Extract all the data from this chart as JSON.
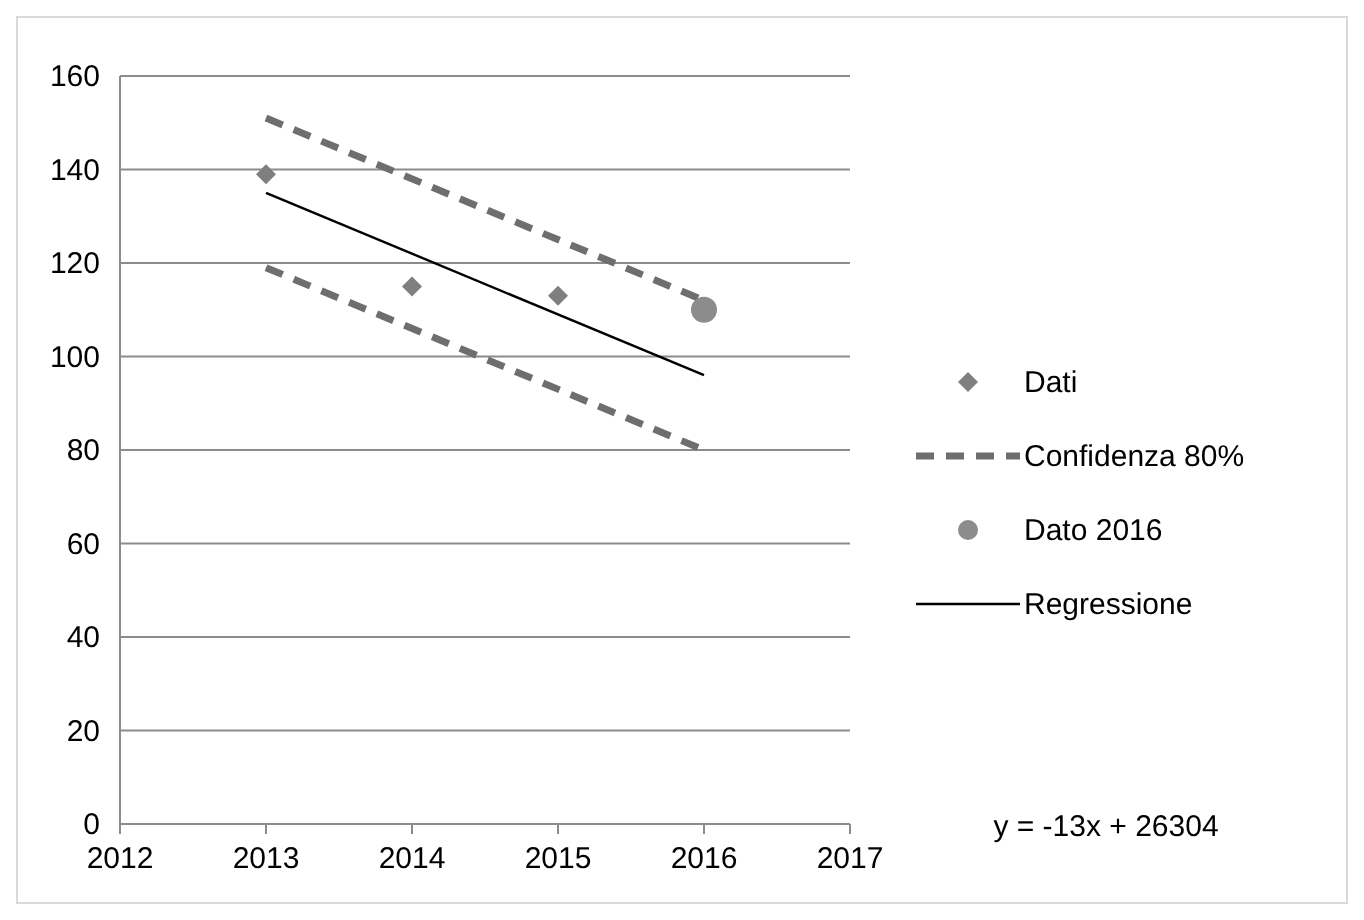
{
  "chart_data": {
    "type": "scatter",
    "xlim": [
      2012,
      2017
    ],
    "xticks": [
      2012,
      2013,
      2014,
      2015,
      2016,
      2017
    ],
    "ylim": [
      0,
      160
    ],
    "yticks": [
      0,
      20,
      40,
      60,
      80,
      100,
      120,
      140,
      160
    ],
    "grid": "y",
    "legend": "right",
    "annotations": [
      "y = -13x + 26304"
    ],
    "series": [
      {
        "name": "Dati",
        "marker": "diamond",
        "color": "#7f7f7f",
        "x": [
          2013,
          2014,
          2015
        ],
        "values": [
          139,
          115,
          113
        ]
      },
      {
        "name": "Confidenza 80%",
        "type": "line",
        "line_style": "dashed",
        "marker": "none",
        "color": "#6e6e6e",
        "x": [
          2013,
          2016
        ],
        "values": [
          151,
          112
        ]
      },
      {
        "name": "Dato 2016",
        "marker": "circle",
        "color": "#8c8c8c",
        "x": [
          2016
        ],
        "values": [
          110
        ]
      },
      {
        "name": "Regressione",
        "type": "line",
        "line_style": "solid",
        "marker": "none",
        "color": "#000000",
        "x": [
          2013,
          2016
        ],
        "values": [
          135,
          96
        ]
      },
      {
        "type": "line",
        "line_style": "dashed",
        "marker": "none",
        "color": "#6e6e6e",
        "x": [
          2013,
          2016
        ],
        "values": [
          119,
          80
        ]
      }
    ]
  }
}
